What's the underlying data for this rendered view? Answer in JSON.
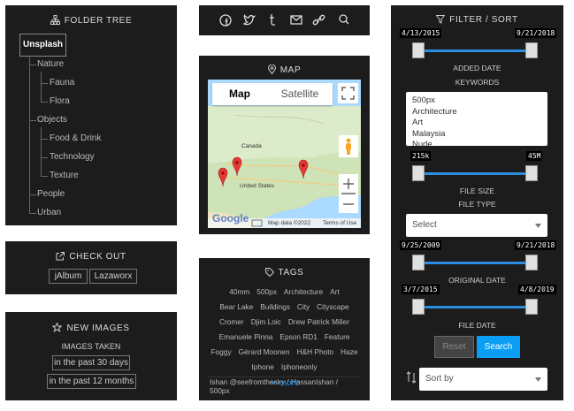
{
  "folder_tree": {
    "title": "FOLDER TREE",
    "root": {
      "label": "Unsplash",
      "children": [
        {
          "label": "Nature",
          "children": [
            {
              "label": "Fauna"
            },
            {
              "label": "Flora"
            }
          ]
        },
        {
          "label": "Objects",
          "children": [
            {
              "label": "Food & Drink"
            },
            {
              "label": "Technology"
            },
            {
              "label": "Texture"
            }
          ]
        },
        {
          "label": "People"
        },
        {
          "label": "Urban"
        }
      ]
    }
  },
  "checkout": {
    "title": "CHECK OUT",
    "buttons": [
      "jAlbum",
      "Lazaworx"
    ]
  },
  "new_images": {
    "title": "NEW IMAGES",
    "subtitle": "IMAGES TAKEN",
    "buttons": [
      "in the past 30 days",
      "in the past 12 months"
    ]
  },
  "map": {
    "title": "MAP",
    "tabs": [
      "Map",
      "Satellite"
    ],
    "places": [
      "Canada",
      "United States"
    ],
    "logo": "Google",
    "attribution": "Map data ©2022",
    "terms": "Terms of Use"
  },
  "tags": {
    "title": "TAGS",
    "items": [
      "40mm",
      "500px",
      "Architecture",
      "Art",
      "Bear Lake",
      "Buildings",
      "City",
      "Cityscape",
      "Cromer",
      "Djim Loic",
      "Drew Patrick Miller",
      "Emanuele Pinna",
      "Epson RD1",
      "Feature",
      "Foggy",
      "Gérard Moonen",
      "H&H Photo",
      "Haze",
      "Iphone",
      "Iphoneonly",
      "Ishan @seefromthesky / HassanIshan / 500px"
    ],
    "more": "more"
  },
  "filter": {
    "title": "FILTER / SORT",
    "added_date": {
      "min": "4/13/2015",
      "max": "9/21/2018",
      "label": "ADDED DATE"
    },
    "keywords": {
      "label": "KEYWORDS",
      "options": [
        "500px",
        "Architecture",
        "Art",
        "Malaysia",
        "Nude"
      ]
    },
    "file_size": {
      "min": "215k",
      "max": "45M",
      "label": "FILE SIZE"
    },
    "file_type": {
      "label": "FILE TYPE",
      "placeholder": "Select"
    },
    "original_date": {
      "min": "9/25/2009",
      "max": "9/21/2018",
      "label": "ORIGINAL DATE"
    },
    "file_date": {
      "min": "3/7/2015",
      "max": "4/8/2019",
      "label": "FILE DATE"
    },
    "buttons": [
      "Reset",
      "Search"
    ],
    "sort": "Sort by"
  }
}
